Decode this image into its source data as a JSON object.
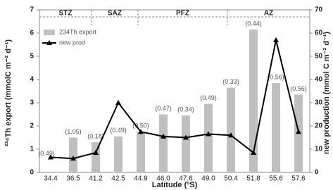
{
  "chart_data": {
    "type": "bar_line",
    "xlabel": "Latitude (ºS)",
    "ylabel": "²³⁴Th export (mmolC m⁻² d⁻¹)",
    "y2label": "new production (mmol C m⁻² d⁻¹)",
    "zones": [
      "STZ",
      "SAZ",
      "PFZ",
      "AZ"
    ],
    "categories": [
      "34.4",
      "36.5",
      "41.2",
      "42.5",
      "44.9",
      "46.0",
      "47.6",
      "49.0",
      "50.4",
      "51.8",
      "55.6",
      "57.6"
    ],
    "series": [
      {
        "name": "234Th export",
        "color": "#c0c0c0",
        "type": "bar",
        "values": [
          null,
          1.5,
          1.3,
          1.55,
          1.75,
          2.5,
          2.45,
          2.95,
          3.65,
          6.15,
          3.85,
          3.35
        ],
        "annotations": [
          "(0.49)",
          "(1.05)",
          "(0.18)",
          "(0.49)",
          "(0.50)",
          "(0.47)",
          "(0.34)",
          "(0.49)",
          "(0.33)",
          "(0.44)",
          "(0.56)",
          "(0.56)"
        ]
      },
      {
        "name": "new prod",
        "color": "#000000",
        "type": "line",
        "axis": "y2",
        "values": [
          6.5,
          6,
          8.5,
          30,
          17.5,
          15.5,
          15,
          16.5,
          16,
          8.5,
          57,
          17.5
        ]
      }
    ],
    "ylim": [
      0,
      7
    ],
    "yticks": [
      0,
      1,
      2,
      3,
      4,
      5,
      6,
      7
    ],
    "y2lim": [
      0,
      70
    ],
    "y2ticks": [
      0,
      10,
      20,
      30,
      40,
      50,
      60,
      70
    ]
  }
}
